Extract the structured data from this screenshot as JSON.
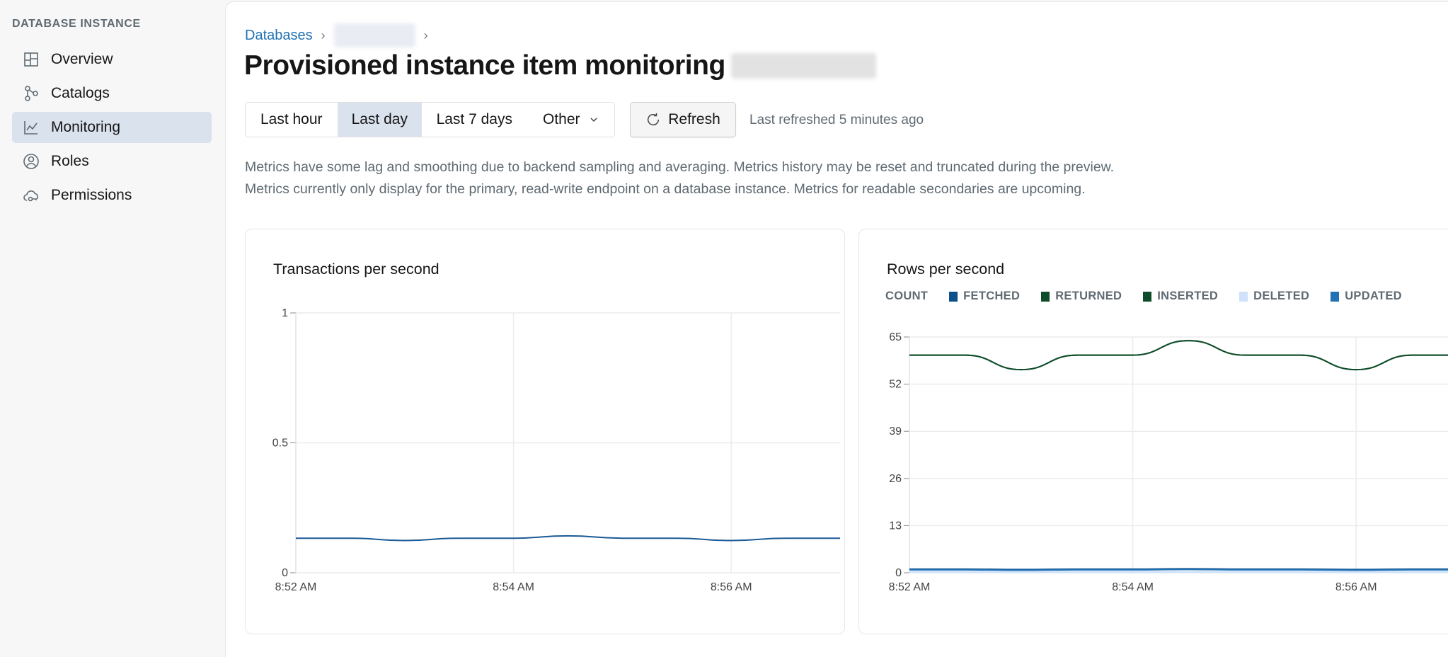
{
  "sidebar": {
    "header": "DATABASE INSTANCE",
    "items": [
      {
        "label": "Overview",
        "icon": "layout-icon"
      },
      {
        "label": "Catalogs",
        "icon": "catalog-icon"
      },
      {
        "label": "Monitoring",
        "icon": "chart-line-icon",
        "active": true
      },
      {
        "label": "Roles",
        "icon": "user-circle-icon"
      },
      {
        "label": "Permissions",
        "icon": "cloud-key-icon"
      }
    ]
  },
  "breadcrumb": {
    "root": "Databases"
  },
  "page": {
    "title": "Provisioned instance item monitoring"
  },
  "range": {
    "options": [
      "Last hour",
      "Last day",
      "Last 7 days",
      "Other"
    ],
    "selected": "Last day"
  },
  "refresh": {
    "label": "Refresh",
    "status": "Last refreshed 5 minutes ago"
  },
  "notes": [
    "Metrics have some lag and smoothing due to backend sampling and averaging. Metrics history may be reset and truncated during the preview.",
    "Metrics currently only display for the primary, read-write endpoint on a database instance. Metrics for readable secondaries are upcoming."
  ],
  "colors": {
    "accent": "#2272b4",
    "active_bg": "#dae2ee"
  },
  "chart_data": [
    {
      "type": "line",
      "title": "Transactions per second",
      "grid": true,
      "x": [
        "8:52",
        "8:52:30",
        "8:53",
        "8:53:30",
        "8:54",
        "8:54:30",
        "8:55",
        "8:55:30",
        "8:56",
        "8:56:30",
        "8:57"
      ],
      "xticks": [
        "8:52 AM",
        "8:54 AM",
        "8:56 AM"
      ],
      "yticks": [
        "0",
        "0.5",
        "1"
      ],
      "ylim": [
        0,
        1
      ],
      "series": [
        {
          "color": "#1b5a96",
          "values": [
            0.133,
            0.133,
            0.124,
            0.133,
            0.133,
            0.142,
            0.133,
            0.133,
            0.124,
            0.133,
            0.133
          ]
        }
      ]
    },
    {
      "type": "line",
      "title": "Rows per second",
      "grid": true,
      "legend": "top-left",
      "legend_label": "COUNT",
      "x": [
        "8:52",
        "8:52:30",
        "8:53",
        "8:53:30",
        "8:54",
        "8:54:30",
        "8:55",
        "8:55:30",
        "8:56",
        "8:56:30",
        "8:57"
      ],
      "xticks": [
        "8:52 AM",
        "8:54 AM",
        "8:56 AM"
      ],
      "yticks": [
        "0",
        "13",
        "26",
        "39",
        "52",
        "65"
      ],
      "ylim": [
        0,
        65
      ],
      "series": [
        {
          "name": "FETCHED",
          "color": "#0b4f8c",
          "values": [
            1,
            1,
            0.9,
            1,
            1,
            1.1,
            1,
            1,
            0.9,
            1,
            1
          ]
        },
        {
          "name": "RETURNED",
          "color": "#0f4d2a",
          "values": [
            60,
            60,
            56,
            60,
            60,
            64,
            60,
            60,
            56,
            60,
            60
          ]
        },
        {
          "name": "INSERTED",
          "color": "#0f4d2a",
          "values": [
            60,
            60,
            56,
            60,
            60,
            64,
            60,
            60,
            56,
            60,
            60
          ]
        },
        {
          "name": "DELETED",
          "color": "#cfe2fa",
          "values": [
            0.2,
            0.2,
            0.2,
            0.2,
            0.2,
            0.2,
            0.2,
            0.2,
            0.2,
            0.2,
            0.2
          ]
        },
        {
          "name": "UPDATED",
          "color": "#2272b4",
          "values": [
            0.8,
            0.8,
            0.7,
            0.8,
            0.8,
            0.9,
            0.8,
            0.8,
            0.7,
            0.8,
            0.8
          ]
        }
      ]
    }
  ]
}
